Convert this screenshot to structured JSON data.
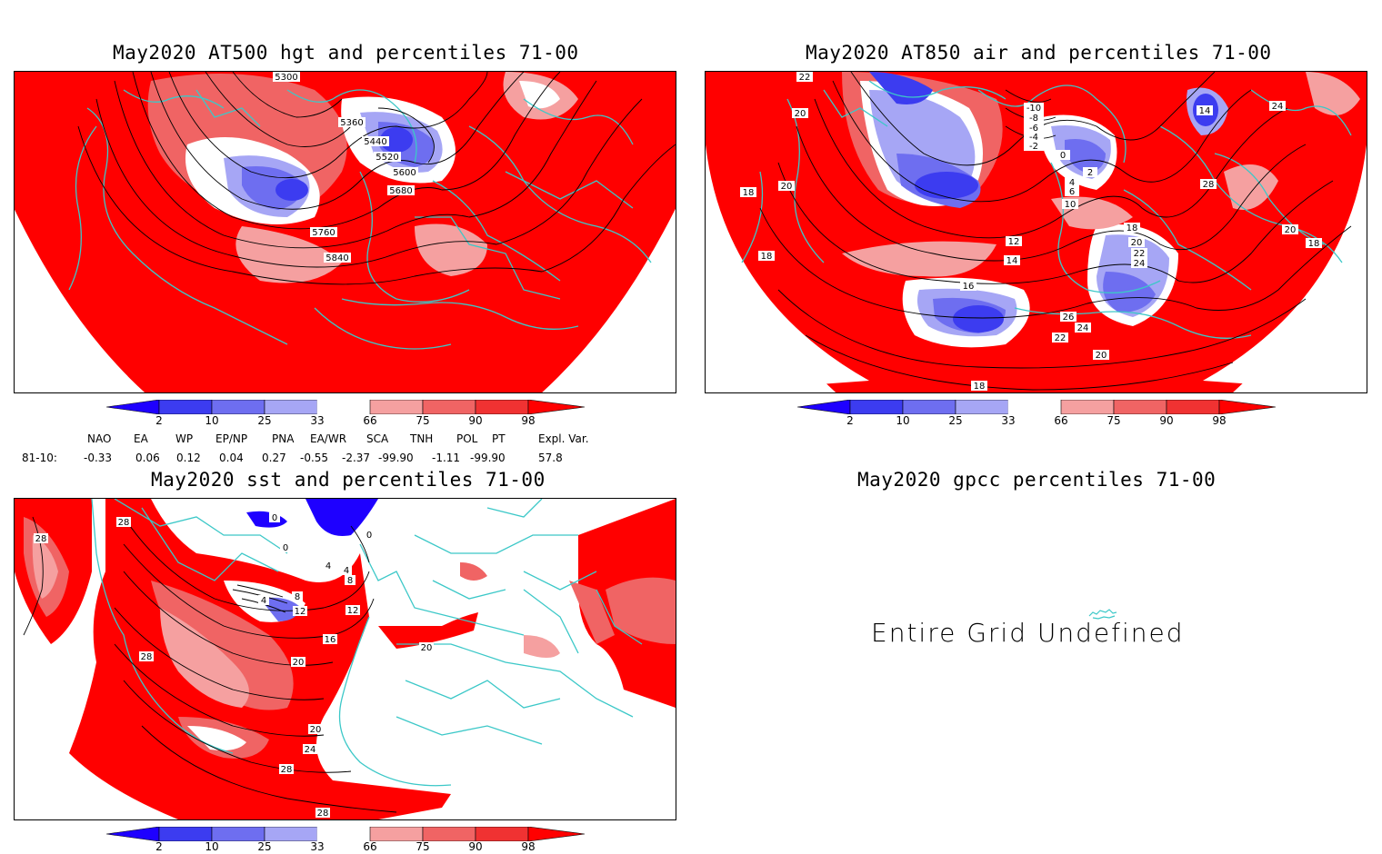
{
  "panels": [
    {
      "title": "May2020 AT500 hgt and percentiles 71-00",
      "contour_labels": [
        "5300",
        "5360",
        "5440",
        "5520",
        "5600",
        "5680",
        "5760",
        "5840"
      ]
    },
    {
      "title": "May2020 AT850 air and percentiles 71-00",
      "contour_labels": [
        "22",
        "20",
        "18",
        "20",
        "18",
        "-10",
        "-8",
        "-6",
        "-4",
        "-2",
        "0",
        "2",
        "4",
        "6",
        "10",
        "14",
        "24",
        "28",
        "20",
        "18",
        "18",
        "20",
        "22",
        "24",
        "12",
        "14",
        "16",
        "26",
        "24",
        "22",
        "20",
        "18"
      ]
    },
    {
      "title": "May2020 sst and percentiles 71-00",
      "contour_labels": [
        "28",
        "28",
        "0",
        "0",
        "0",
        "4",
        "4",
        "8",
        "4",
        "8",
        "12",
        "12",
        "16",
        "20",
        "20",
        "28",
        "20",
        "24",
        "28",
        "28"
      ]
    },
    {
      "title": "May2020 gpcc percentiles 71-00",
      "undefined_text": "Entire Grid Undefined"
    }
  ],
  "colorbar": {
    "labels": [
      "2",
      "10",
      "25",
      "33",
      "66",
      "75",
      "90",
      "98"
    ],
    "colors": [
      "#1e00ff",
      "#3c3cf0",
      "#6e6ef0",
      "#a6a6f5",
      "#ffffff",
      "#f5a0a0",
      "#f06464",
      "#f03232",
      "#ff0000"
    ]
  },
  "teleconnections": {
    "headers": [
      "NAO",
      "EA",
      "WP",
      "EP/NP",
      "PNA",
      "EA/WR",
      "SCA",
      "TNH",
      "POL",
      "PT",
      "Expl. Var."
    ],
    "row_label": "81-10:",
    "values": [
      "-0.33",
      "0.06",
      "0.12",
      "0.04",
      "0.27",
      "-0.55",
      "-2.37",
      "-99.90",
      "-1.11",
      "-99.90",
      "57.8"
    ]
  },
  "map_colors": {
    "red": "#ff0000",
    "red2": "#f03232",
    "red3": "#f06464",
    "pink": "#f5a0a0",
    "blue1": "#1e00ff",
    "blue2": "#3c3cf0",
    "blue3": "#6e6ef0",
    "blue4": "#a6a6f5",
    "coast": "#3cc8c8"
  }
}
